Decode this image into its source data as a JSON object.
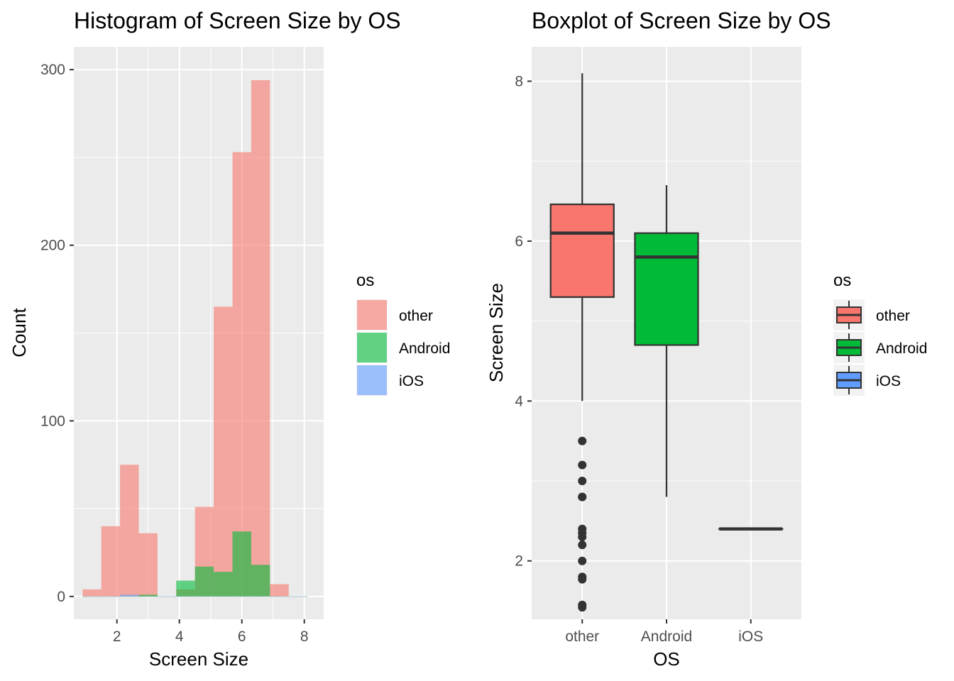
{
  "chart_data": [
    {
      "type": "histogram",
      "title": "Histogram of Screen Size by OS",
      "xlabel": "Screen Size",
      "ylabel": "Count",
      "xlim": [
        0.62,
        8.62
      ],
      "ylim": [
        -13,
        313
      ],
      "xticks": [
        2,
        4,
        6,
        8
      ],
      "xtick_labels": [
        "2",
        "4",
        "6",
        "8"
      ],
      "yticks": [
        0,
        100,
        200,
        300
      ],
      "ytick_labels": [
        "0",
        "100",
        "200",
        "300"
      ],
      "bin_width": 0.6,
      "bin_starts": [
        0.9,
        1.5,
        2.1,
        2.7,
        3.3,
        3.9,
        4.5,
        5.1,
        5.7,
        6.3,
        6.9,
        7.5
      ],
      "series": [
        {
          "name": "other",
          "color": "#F8766D",
          "values": [
            4,
            40,
            75,
            36,
            0,
            4,
            51,
            165,
            253,
            294,
            7,
            0
          ]
        },
        {
          "name": "Android",
          "color": "#00BA38",
          "values": [
            0,
            0,
            0,
            1,
            0,
            9,
            17,
            14,
            37,
            18,
            0,
            0
          ]
        },
        {
          "name": "iOS",
          "color": "#619CFF",
          "values": [
            0,
            0,
            1,
            0,
            0,
            0,
            0,
            0,
            0,
            0,
            0,
            0
          ]
        }
      ],
      "grid": true,
      "legend": {
        "title": "os",
        "position": "right",
        "entries": [
          "other",
          "Android",
          "iOS"
        ]
      }
    },
    {
      "type": "boxplot",
      "title": "Boxplot of Screen Size by OS",
      "xlabel": "OS",
      "ylabel": "Screen Size",
      "categories": [
        "other",
        "Android",
        "iOS"
      ],
      "ylim": [
        1.27,
        8.43
      ],
      "yticks": [
        2,
        4,
        6,
        8
      ],
      "ytick_labels": [
        "2",
        "4",
        "6",
        "8"
      ],
      "boxes": [
        {
          "name": "other",
          "color": "#F8766D",
          "whisker_low": 4.0,
          "q1": 5.3,
          "median": 6.1,
          "q3": 6.46,
          "whisker_high": 8.1,
          "outliers": [
            3.5,
            3.2,
            3.0,
            2.8,
            2.8,
            2.4,
            2.35,
            2.3,
            2.2,
            2.0,
            1.8,
            1.77,
            1.45,
            1.42
          ]
        },
        {
          "name": "Android",
          "color": "#00BA38",
          "whisker_low": 2.8,
          "q1": 4.7,
          "median": 5.8,
          "q3": 6.1,
          "whisker_high": 6.7,
          "outliers": []
        },
        {
          "name": "iOS",
          "color": "#619CFF",
          "whisker_low": 2.4,
          "q1": 2.4,
          "median": 2.4,
          "q3": 2.4,
          "whisker_high": 2.4,
          "outliers": []
        }
      ],
      "grid": true,
      "legend": {
        "title": "os",
        "position": "right",
        "entries": [
          "other",
          "Android",
          "iOS"
        ]
      }
    }
  ]
}
